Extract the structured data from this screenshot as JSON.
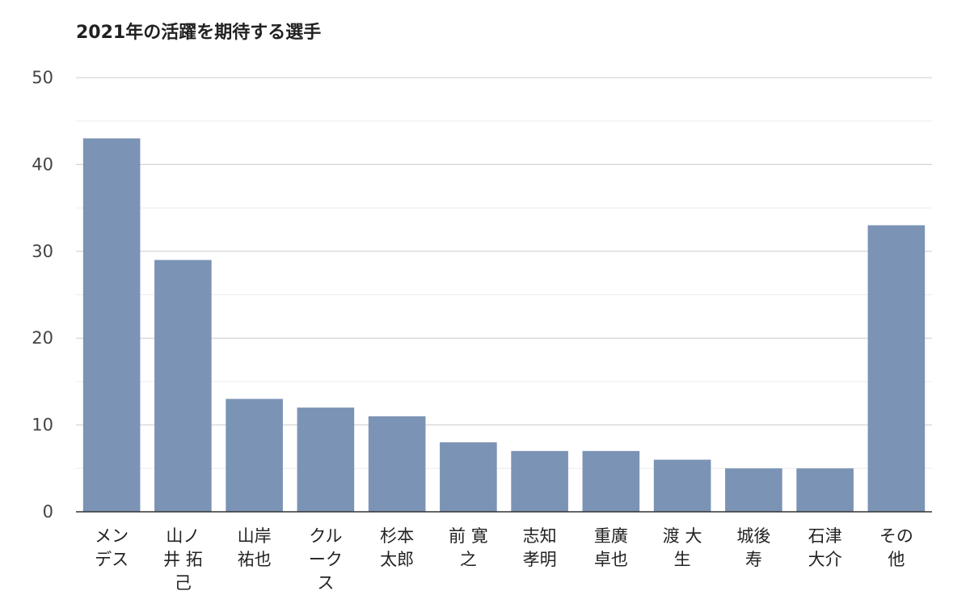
{
  "chart_data": {
    "type": "bar",
    "title": "2021年の活躍を期待する選手",
    "xlabel": "",
    "ylabel": "",
    "ylim": [
      0,
      50
    ],
    "yticks": [
      0,
      10,
      20,
      30,
      40,
      50
    ],
    "minor_grid_step": 5,
    "grid": true,
    "legend": "none",
    "bar_color": "#7b93b5",
    "categories": [
      [
        "メン",
        "デス"
      ],
      [
        "山ノ",
        "井 拓",
        "己"
      ],
      [
        "山岸",
        "祐也"
      ],
      [
        "クル",
        "ーク",
        "ス"
      ],
      [
        "杉本",
        "太郎"
      ],
      [
        "前 寛",
        "之"
      ],
      [
        "志知",
        "孝明"
      ],
      [
        "重廣",
        "卓也"
      ],
      [
        "渡 大",
        "生"
      ],
      [
        "城後",
        "寿"
      ],
      [
        "石津",
        "大介"
      ],
      [
        "その",
        "他"
      ]
    ],
    "values": [
      43,
      29,
      13,
      12,
      11,
      8,
      7,
      7,
      6,
      5,
      5,
      33
    ]
  }
}
